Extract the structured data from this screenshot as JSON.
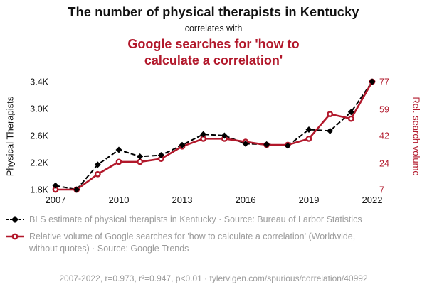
{
  "header": {
    "title": "The number of physical therapists in Kentucky",
    "connector": "correlates with",
    "subtitle": "Google searches for 'how to calculate a correlation'"
  },
  "colors": {
    "series1": "#000000",
    "series2": "#b2182b",
    "muted": "#9b9b9b"
  },
  "chart_data": {
    "type": "line",
    "x": [
      2007,
      2008,
      2009,
      2010,
      2011,
      2012,
      2013,
      2014,
      2015,
      2016,
      2017,
      2018,
      2019,
      2020,
      2021,
      2022
    ],
    "x_ticks": [
      2007,
      2010,
      2013,
      2016,
      2019,
      2022
    ],
    "series": [
      {
        "name": "BLS estimate of physical therapists in Kentucky",
        "axis": "left",
        "color": "#000000",
        "style": "dashed",
        "marker": "diamond",
        "values": [
          1860,
          1800,
          2170,
          2390,
          2290,
          2310,
          2460,
          2620,
          2600,
          2480,
          2470,
          2450,
          2690,
          2670,
          2950,
          3400
        ]
      },
      {
        "name": "Relative volume of Google searches for 'how to calculate a correlation'",
        "axis": "right",
        "color": "#b2182b",
        "style": "solid",
        "marker": "circle",
        "values": [
          7,
          7,
          17,
          25,
          25,
          27,
          35,
          40,
          40,
          38,
          36,
          36,
          40,
          56,
          53,
          77
        ]
      }
    ],
    "left_axis": {
      "label": "Physical Therapists",
      "min": 1800,
      "max": 3400,
      "ticks": [
        1800,
        2200,
        2600,
        3000,
        3400
      ],
      "tick_labels": [
        "1.8K",
        "2.2K",
        "2.6K",
        "3.0K",
        "3.4K"
      ]
    },
    "right_axis": {
      "label": "Rel. search volume",
      "min": 7,
      "max": 77,
      "ticks": [
        7,
        24,
        42,
        59,
        77
      ],
      "tick_labels": [
        "7",
        "24",
        "42",
        "59",
        "77"
      ]
    },
    "legend_position": "bottom",
    "grid": false
  },
  "legend": [
    {
      "label": "BLS estimate of physical therapists in Kentucky · Source: Bureau of Larbor Statistics"
    },
    {
      "label": "Relative volume of Google searches for 'how to calculate a correlation' (Worldwide, without quotes) · Source: Google Trends"
    }
  ],
  "footer": "2007-2022, r=0.973, r²=0.947, p<0.01 · tylervigen.com/spurious/correlation/40992"
}
